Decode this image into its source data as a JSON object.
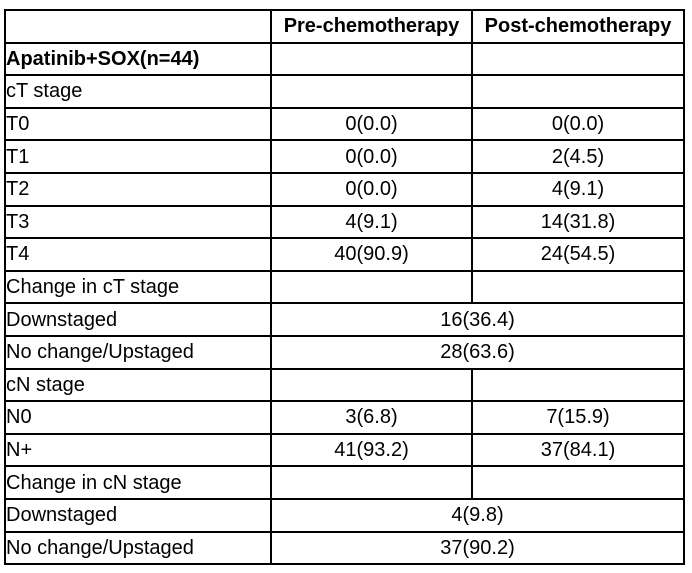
{
  "page": {
    "background_color": "#ffffff",
    "border_color": "#000000",
    "text_color": "#000000"
  },
  "table": {
    "columns": [
      {
        "label": ""
      },
      {
        "label": "Pre-chemotherapy"
      },
      {
        "label": "Post-chemotherapy"
      }
    ],
    "rows": [
      {
        "label": "Apatinib+SOX(n=44)",
        "bold": true,
        "indent": 0,
        "cells": [
          "",
          ""
        ]
      },
      {
        "label": "cT stage",
        "bold": false,
        "indent": 0,
        "cells": [
          "",
          ""
        ]
      },
      {
        "label": "T0",
        "bold": false,
        "indent": 1,
        "cells": [
          "0(0.0)",
          "0(0.0)"
        ]
      },
      {
        "label": "T1",
        "bold": false,
        "indent": 1,
        "cells": [
          "0(0.0)",
          "2(4.5)"
        ]
      },
      {
        "label": "T2",
        "bold": false,
        "indent": 1,
        "cells": [
          "0(0.0)",
          "4(9.1)"
        ]
      },
      {
        "label": "T3",
        "bold": false,
        "indent": 1,
        "cells": [
          "4(9.1)",
          "14(31.8)"
        ]
      },
      {
        "label": "T4",
        "bold": false,
        "indent": 1,
        "cells": [
          "40(90.9)",
          "24(54.5)"
        ]
      },
      {
        "label": "Change in cT stage",
        "bold": false,
        "indent": 0,
        "cells": [
          "",
          ""
        ]
      },
      {
        "label": "Downstaged",
        "bold": false,
        "indent": 2,
        "merged": "16(36.4)"
      },
      {
        "label": "No change/Upstaged",
        "bold": false,
        "indent": 2,
        "merged": "28(63.6)"
      },
      {
        "label": "cN stage",
        "bold": false,
        "indent": 0,
        "cells": [
          "",
          ""
        ]
      },
      {
        "label": "N0",
        "bold": false,
        "indent": 1,
        "cells": [
          "3(6.8)",
          "7(15.9)"
        ]
      },
      {
        "label": "N+",
        "bold": false,
        "indent": 1,
        "cells": [
          "41(93.2)",
          "37(84.1)"
        ]
      },
      {
        "label": "Change in cN stage",
        "bold": false,
        "indent": 0,
        "cells": [
          "",
          ""
        ]
      },
      {
        "label": "Downstaged",
        "bold": false,
        "indent": 2,
        "merged": "4(9.8)"
      },
      {
        "label": "No change/Upstaged",
        "bold": false,
        "indent": 2,
        "merged": "37(90.2)"
      }
    ]
  }
}
